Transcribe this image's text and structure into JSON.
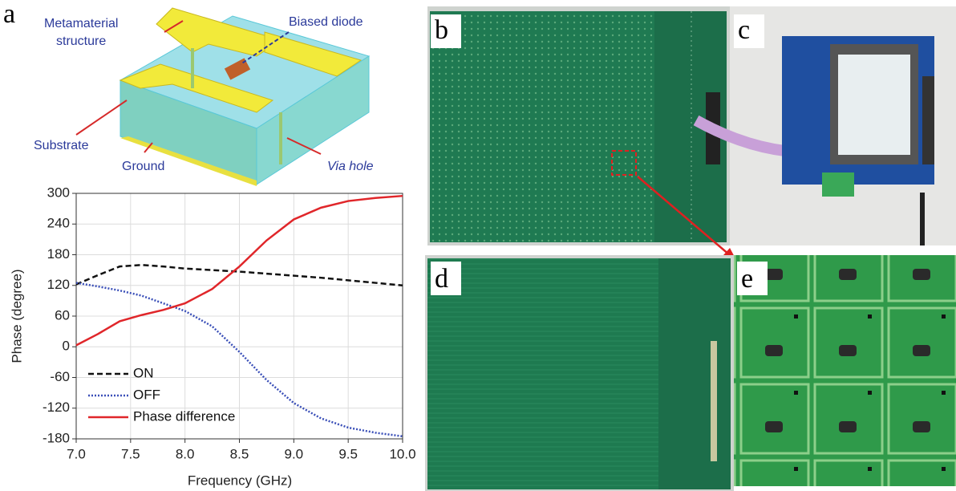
{
  "panels": {
    "a": "a",
    "b": "b",
    "c": "c",
    "d": "d",
    "e": "e"
  },
  "diagram": {
    "metamaterial_structure": [
      "Metamaterial",
      "structure"
    ],
    "biased_diode": "Biased diode",
    "substrate": "Substrate",
    "ground": "Ground",
    "via_hole": "Via hole"
  },
  "chart_data": {
    "type": "line",
    "xlabel": "Frequency (GHz)",
    "ylabel": "Phase (degree)",
    "x": [
      7.0,
      7.2,
      7.4,
      7.6,
      7.8,
      8.0,
      8.25,
      8.5,
      8.75,
      9.0,
      9.25,
      9.5,
      9.75,
      10.0
    ],
    "xlim": [
      7.0,
      10.0
    ],
    "xticks": [
      {
        "value": 7,
        "label": "7.0"
      },
      7.5,
      {
        "value": 8,
        "label": "8.0"
      },
      8.5,
      {
        "value": 9,
        "label": "9.0"
      },
      9.5,
      {
        "value": 10,
        "label": "10.0"
      }
    ],
    "ylim": [
      -180,
      300
    ],
    "yticks": [
      -180,
      -120,
      -60,
      0,
      60,
      120,
      180,
      240,
      300
    ],
    "grid": true,
    "legend": "lower left",
    "series": [
      {
        "name": "ON",
        "color": "#111111",
        "style": "dashed",
        "values": [
          122,
          140,
          157,
          160,
          157,
          153,
          150,
          147,
          143,
          139,
          135,
          130,
          125,
          120
        ]
      },
      {
        "name": "OFF",
        "color": "#3a4fb8",
        "style": "dotted",
        "values": [
          125,
          118,
          110,
          100,
          85,
          70,
          40,
          -10,
          -65,
          -110,
          -140,
          -158,
          -168,
          -175
        ]
      },
      {
        "name": "Phase difference",
        "color": "#e0262a",
        "style": "solid",
        "values": [
          3,
          25,
          50,
          62,
          72,
          85,
          113,
          157,
          208,
          249,
          272,
          285,
          291,
          295
        ]
      }
    ]
  }
}
